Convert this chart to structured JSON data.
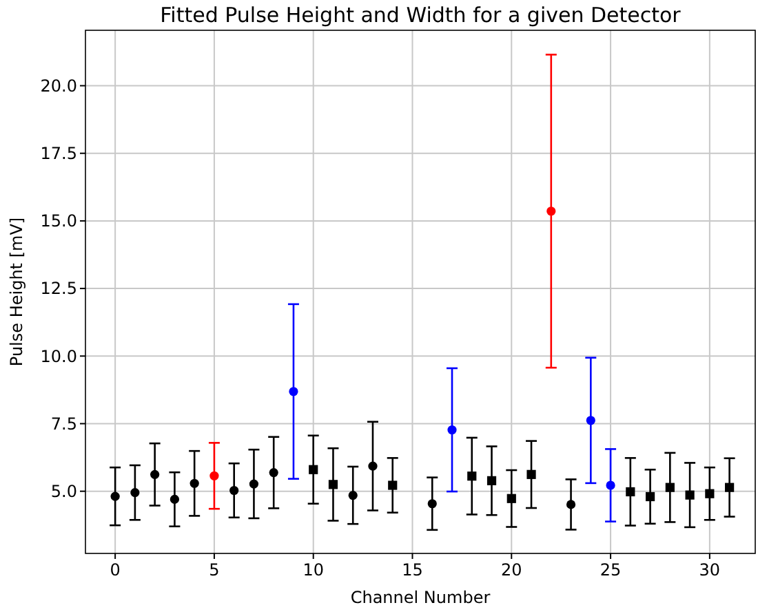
{
  "chart_data": {
    "type": "scatter",
    "title": "Fitted Pulse Height and Width for a given Detector",
    "xlabel": "Channel Number",
    "ylabel": "Pulse Height [mV]",
    "xlim": [
      -1.5,
      32.3
    ],
    "xticks": [
      0,
      5,
      10,
      15,
      20,
      25,
      30
    ],
    "ylim": [
      2.7,
      22.05
    ],
    "yticks": [
      {
        "value": 5,
        "label": "5.0"
      },
      {
        "value": 7.5,
        "label": "7.5"
      },
      {
        "value": 10,
        "label": "10.0"
      },
      {
        "value": 12.5,
        "label": "12.5"
      },
      {
        "value": 15,
        "label": "15.0"
      },
      {
        "value": 17.5,
        "label": "17.5"
      },
      {
        "value": 20,
        "label": "20.0"
      }
    ],
    "grid": true,
    "series": [
      {
        "color": "#000000",
        "marker": "circle",
        "x": [
          0,
          1,
          2,
          3,
          4,
          6,
          7,
          8,
          12,
          13,
          16,
          23
        ],
        "values": [
          4.81,
          4.95,
          5.62,
          4.7,
          5.29,
          5.03,
          5.27,
          5.69,
          4.85,
          5.93,
          4.54,
          4.51
        ],
        "errors": [
          1.07,
          1.01,
          1.15,
          1.0,
          1.2,
          1.0,
          1.27,
          1.32,
          1.06,
          1.64,
          0.97,
          0.93
        ]
      },
      {
        "color": "#000000",
        "marker": "square",
        "x": [
          10,
          11,
          14,
          18,
          19,
          20,
          21,
          26,
          27,
          28,
          29,
          30,
          31
        ],
        "values": [
          5.8,
          5.25,
          5.22,
          5.56,
          5.39,
          4.73,
          5.62,
          4.98,
          4.8,
          5.14,
          4.86,
          4.91,
          5.14
        ],
        "errors": [
          1.26,
          1.34,
          1.01,
          1.42,
          1.27,
          1.05,
          1.24,
          1.25,
          1.0,
          1.28,
          1.19,
          0.97,
          1.08
        ]
      },
      {
        "color": "#ff0000",
        "marker": "circle",
        "x": [
          5,
          22
        ],
        "values": [
          5.57,
          15.36
        ],
        "errors": [
          1.22,
          5.79
        ]
      },
      {
        "color": "#0000ff",
        "marker": "circle",
        "x": [
          9,
          17,
          24,
          25
        ],
        "values": [
          8.69,
          7.27,
          7.62,
          5.22
        ],
        "errors": [
          3.23,
          2.28,
          2.32,
          1.34
        ]
      }
    ]
  }
}
